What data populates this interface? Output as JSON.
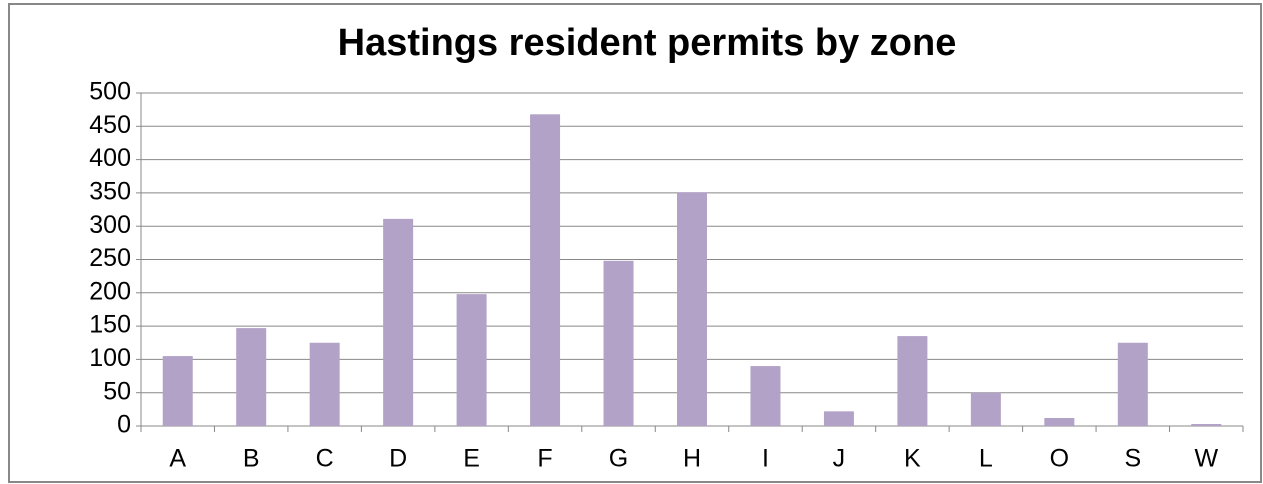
{
  "chart_data": {
    "type": "bar",
    "title": "Hastings resident permits by zone",
    "categories": [
      "A",
      "B",
      "C",
      "D",
      "E",
      "F",
      "G",
      "H",
      "I",
      "J",
      "K",
      "L",
      "O",
      "S",
      "W"
    ],
    "values": [
      105,
      147,
      125,
      311,
      198,
      468,
      248,
      351,
      90,
      22,
      135,
      50,
      12,
      125,
      3
    ],
    "color": "#b3a2c7",
    "ylim": [
      0,
      500
    ],
    "yticks": [
      0,
      50,
      100,
      150,
      200,
      250,
      300,
      350,
      400,
      450,
      500
    ],
    "grid": true
  }
}
